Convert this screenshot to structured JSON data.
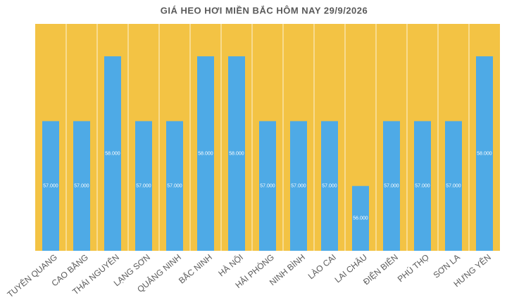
{
  "chart_data": {
    "type": "bar",
    "title": "GIÁ HEO HƠI MIỀN BẮC HÔM NAY 29/9/2026",
    "categories": [
      "TUYÊN QUANG",
      "CAO BẰNG",
      "THÁI NGUYÊN",
      "LẠNG SƠN",
      "QUẢNG NINH",
      "BẮC NINH",
      "HÀ NỘI",
      "HẢI PHÒNG",
      "NINH BÌNH",
      "LÀO CAI",
      "LAI CHÂU",
      "ĐIỆN BIÊN",
      "PHÚ THỌ",
      "SƠN LA",
      "HƯNG YÊN"
    ],
    "values": [
      57000,
      57000,
      58000,
      57000,
      57000,
      58000,
      58000,
      57000,
      57000,
      57000,
      56000,
      57000,
      57000,
      57000,
      58000
    ],
    "value_labels": [
      "57.000",
      "57.000",
      "58.000",
      "57.000",
      "57.000",
      "58.000",
      "58.000",
      "57.000",
      "57.000",
      "57.000",
      "56.000",
      "57.000",
      "57.000",
      "57.000",
      "58.000"
    ],
    "color": "#4eaae6",
    "background": "#f3c344",
    "ylim": [
      55000,
      58500
    ]
  }
}
